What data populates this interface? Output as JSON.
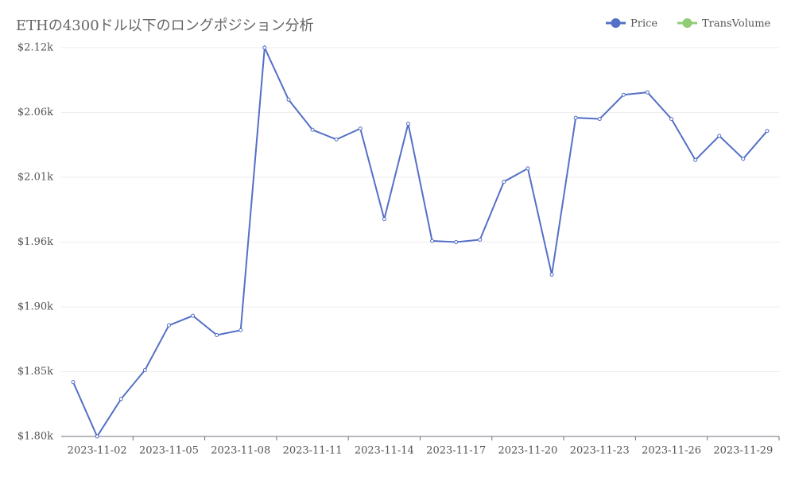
{
  "chart_data": {
    "type": "line",
    "title": "ETHの4300ドル以下のロングポジション分析",
    "categories": [
      null,
      "2023-11-02",
      null,
      null,
      "2023-11-05",
      null,
      null,
      "2023-11-08",
      null,
      null,
      "2023-11-11",
      null,
      null,
      "2023-11-14",
      null,
      null,
      "2023-11-17",
      null,
      null,
      "2023-11-20",
      null,
      null,
      "2023-11-23",
      null,
      null,
      "2023-11-26",
      null,
      null,
      "2023-11-29",
      null
    ],
    "series": [
      {
        "name": "Price",
        "color": "#5470c6",
        "values": [
          1841,
          1796,
          1827,
          1851,
          1888,
          1896,
          1880,
          1884,
          2118,
          2075,
          2050,
          2042,
          2051,
          1976,
          2055,
          1958,
          1957,
          1959,
          2007,
          2018,
          1930,
          2060,
          2059,
          2079,
          2081,
          2059,
          2025,
          2045,
          2026,
          2049
        ]
      },
      {
        "name": "TransVolume",
        "color": "#91cc75",
        "values": [
          null,
          null,
          null,
          null,
          null,
          null,
          null,
          null,
          null,
          null,
          null,
          null,
          null,
          null,
          null,
          null,
          null,
          null,
          null,
          null,
          null,
          null,
          null,
          null,
          null,
          null,
          null,
          null,
          null,
          null
        ]
      }
    ],
    "ylim": [
      1796,
      2118
    ],
    "yticks": [
      {
        "value": 1796,
        "label": "$1.80k"
      },
      {
        "value": 1849.67,
        "label": "$1.85k"
      },
      {
        "value": 1903.33,
        "label": "$1.90k"
      },
      {
        "value": 1957,
        "label": "$1.96k"
      },
      {
        "value": 2010.67,
        "label": "$2.01k"
      },
      {
        "value": 2064.33,
        "label": "$2.06k"
      },
      {
        "value": 2118,
        "label": "$2.12k"
      }
    ],
    "grid": true
  }
}
